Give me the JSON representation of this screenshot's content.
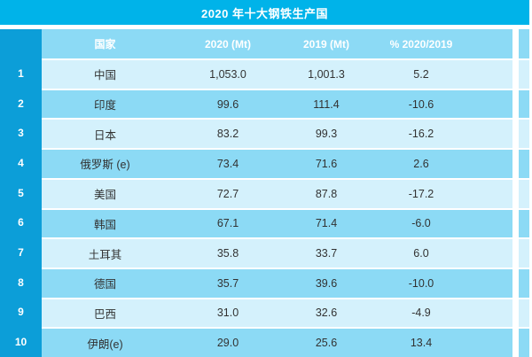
{
  "title": "2020 年十大钢铁生产国",
  "colors": {
    "title_bar": "#00b3e9",
    "rank_column": "#0c9ed8",
    "row_light": "#d4f1fc",
    "row_medium": "#8cdaf5",
    "separator": "#ffffff",
    "text_dark": "#323232",
    "text_light": "#ffffff"
  },
  "table": {
    "headers": {
      "country": "国家",
      "y2020": "2020 (Mt)",
      "y2019": "2019 (Mt)",
      "pct": "% 2020/2019"
    },
    "rows": [
      {
        "rank": "1",
        "country": "中国",
        "y2020": "1,053.0",
        "y2019": "1,001.3",
        "pct": "5.2"
      },
      {
        "rank": "2",
        "country": "印度",
        "y2020": "99.6",
        "y2019": "111.4",
        "pct": "-10.6"
      },
      {
        "rank": "3",
        "country": "日本",
        "y2020": "83.2",
        "y2019": "99.3",
        "pct": "-16.2"
      },
      {
        "rank": "4",
        "country": "俄罗斯 (e)",
        "y2020": "73.4",
        "y2019": "71.6",
        "pct": "2.6"
      },
      {
        "rank": "5",
        "country": "美国",
        "y2020": "72.7",
        "y2019": "87.8",
        "pct": "-17.2"
      },
      {
        "rank": "6",
        "country": "韩国",
        "y2020": "67.1",
        "y2019": "71.4",
        "pct": "-6.0"
      },
      {
        "rank": "7",
        "country": "土耳其",
        "y2020": "35.8",
        "y2019": "33.7",
        "pct": "6.0"
      },
      {
        "rank": "8",
        "country": "德国",
        "y2020": "35.7",
        "y2019": "39.6",
        "pct": "-10.0"
      },
      {
        "rank": "9",
        "country": "巴西",
        "y2020": "31.0",
        "y2019": "32.6",
        "pct": "-4.9"
      },
      {
        "rank": "10",
        "country": "伊朗(e)",
        "y2020": "29.0",
        "y2019": "25.6",
        "pct": "13.4"
      }
    ]
  },
  "chart_data": {
    "type": "table",
    "title": "2020 年十大钢铁生产国",
    "columns": [
      "国家",
      "2020 (Mt)",
      "2019 (Mt)",
      "% 2020/2019"
    ],
    "rows": [
      [
        "中国",
        1053.0,
        1001.3,
        5.2
      ],
      [
        "印度",
        99.6,
        111.4,
        -10.6
      ],
      [
        "日本",
        83.2,
        99.3,
        -16.2
      ],
      [
        "俄罗斯 (e)",
        73.4,
        71.6,
        2.6
      ],
      [
        "美国",
        72.7,
        87.8,
        -17.2
      ],
      [
        "韩国",
        67.1,
        71.4,
        -6.0
      ],
      [
        "土耳其",
        35.8,
        33.7,
        6.0
      ],
      [
        "德国",
        35.7,
        39.6,
        -10.0
      ],
      [
        "巴西",
        31.0,
        32.6,
        -4.9
      ],
      [
        "伊朗(e)",
        29.0,
        25.6,
        13.4
      ]
    ]
  }
}
